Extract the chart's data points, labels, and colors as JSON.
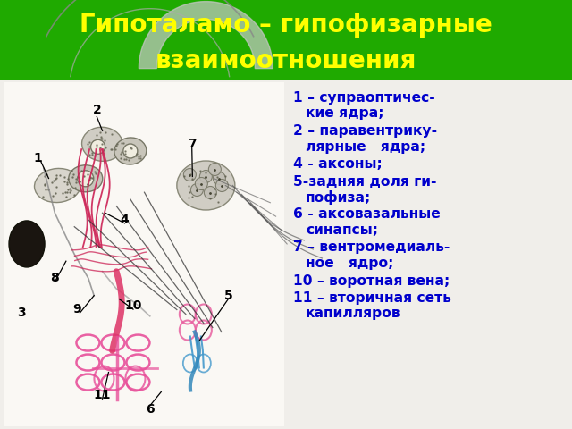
{
  "title_line1": "Гипоталамо – гипофизарные",
  "title_line2": "взаимоотношения",
  "title_color": "#FFFF00",
  "header_bg_color": "#1faa00",
  "body_bg_color": "#e8e8e8",
  "diagram_bg_color": "#f5f3ee",
  "text_color": "#0000cc",
  "legend_entries": [
    [
      "1 – супраоптичес-",
      "кие ядра;"
    ],
    [
      "2 – паравентрику-",
      "лярные   ядра;"
    ],
    [
      "4 - аксоны;"
    ],
    [
      "5-задняя доля ги-",
      "пофиза;"
    ],
    [
      "6 - аксовазальные",
      "синапсы;"
    ],
    [
      "7 – вентромедиаль-",
      "ное   ядро;"
    ],
    [
      "10 – воротная вена;"
    ],
    [
      "11 – вторичная сеть",
      "капилляров"
    ]
  ],
  "figsize": [
    6.4,
    4.8
  ],
  "dpi": 100
}
